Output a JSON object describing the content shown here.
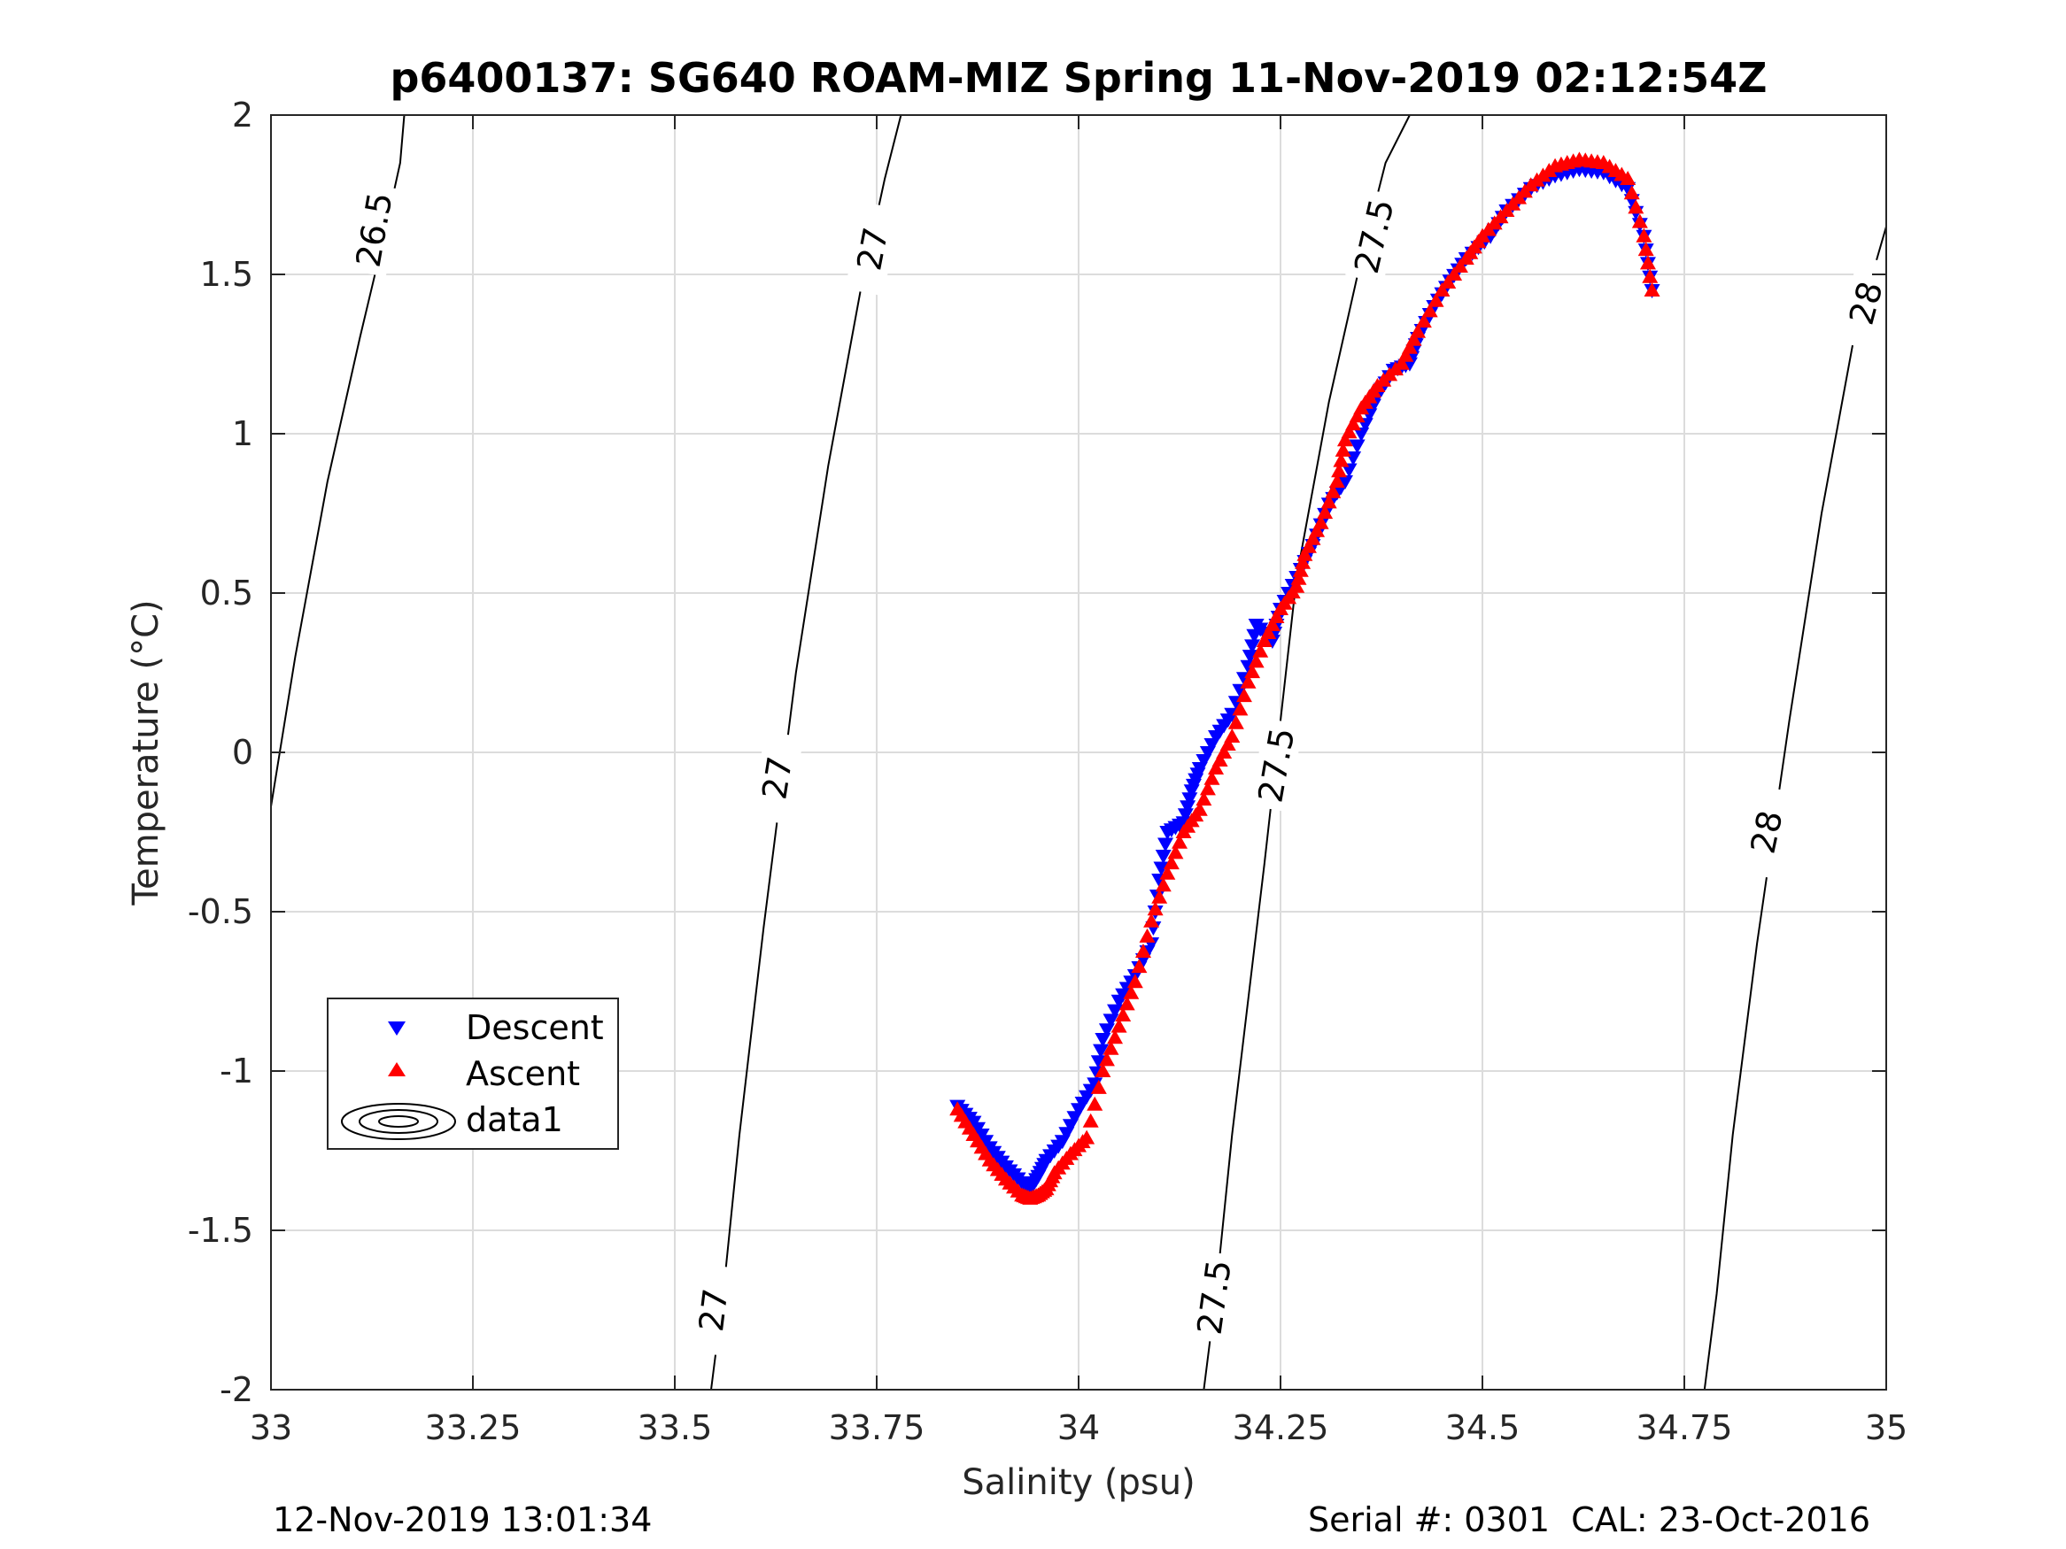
{
  "chart_data": {
    "type": "scatter",
    "title": "p6400137: SG640 ROAM-MIZ Spring 11-Nov-2019 02:12:54Z",
    "xlabel": "Salinity (psu)",
    "ylabel": "Temperature (°C)",
    "xlim": [
      33,
      35
    ],
    "ylim": [
      -2,
      2
    ],
    "grid": true,
    "xticks": [
      33,
      33.25,
      33.5,
      33.75,
      34,
      34.25,
      34.5,
      34.75,
      35
    ],
    "xtick_labels": [
      "33",
      "33.25",
      "33.5",
      "33.75",
      "34",
      "34.25",
      "34.5",
      "34.75",
      "35"
    ],
    "yticks": [
      2,
      1.5,
      1,
      0.5,
      0,
      -0.5,
      -1,
      -1.5,
      -2
    ],
    "ytick_labels": [
      "2",
      "1.5",
      "1",
      "0.5",
      "0",
      "-0.5",
      "-1",
      "-1.5",
      "-2"
    ],
    "legend": {
      "position": "lower-left",
      "entries": [
        "Descent",
        "Ascent",
        "data1"
      ]
    },
    "series": [
      {
        "name": "Descent",
        "marker": "triangle-down",
        "color": "#0000ff",
        "points": [
          [
            33.85,
            -1.11
          ],
          [
            33.87,
            -1.16
          ],
          [
            33.89,
            -1.24
          ],
          [
            33.91,
            -1.3
          ],
          [
            33.93,
            -1.35
          ],
          [
            33.94,
            -1.37
          ],
          [
            33.95,
            -1.33
          ],
          [
            33.96,
            -1.28
          ],
          [
            33.98,
            -1.22
          ],
          [
            34.0,
            -1.12
          ],
          [
            34.02,
            -1.04
          ],
          [
            34.03,
            -0.9
          ],
          [
            34.05,
            -0.78
          ],
          [
            34.07,
            -0.7
          ],
          [
            34.09,
            -0.6
          ],
          [
            34.1,
            -0.4
          ],
          [
            34.11,
            -0.25
          ],
          [
            34.13,
            -0.22
          ],
          [
            34.14,
            -0.12
          ],
          [
            34.15,
            -0.05
          ],
          [
            34.17,
            0.05
          ],
          [
            34.19,
            0.12
          ],
          [
            34.21,
            0.27
          ],
          [
            34.22,
            0.4
          ],
          [
            34.24,
            0.35
          ],
          [
            34.25,
            0.45
          ],
          [
            34.27,
            0.55
          ],
          [
            34.29,
            0.65
          ],
          [
            34.31,
            0.78
          ],
          [
            34.33,
            0.85
          ],
          [
            34.35,
            1.0
          ],
          [
            34.37,
            1.12
          ],
          [
            34.39,
            1.2
          ],
          [
            34.41,
            1.22
          ],
          [
            34.42,
            1.3
          ],
          [
            34.44,
            1.4
          ],
          [
            34.46,
            1.48
          ],
          [
            34.48,
            1.55
          ],
          [
            34.51,
            1.62
          ],
          [
            34.53,
            1.7
          ],
          [
            34.56,
            1.77
          ],
          [
            34.59,
            1.81
          ],
          [
            34.62,
            1.83
          ],
          [
            34.65,
            1.82
          ],
          [
            34.68,
            1.77
          ],
          [
            34.7,
            1.62
          ],
          [
            34.71,
            1.45
          ]
        ]
      },
      {
        "name": "Ascent",
        "marker": "triangle-up",
        "color": "#ff0000",
        "points": [
          [
            33.85,
            -1.12
          ],
          [
            33.87,
            -1.2
          ],
          [
            33.89,
            -1.28
          ],
          [
            33.91,
            -1.34
          ],
          [
            33.93,
            -1.39
          ],
          [
            33.94,
            -1.4
          ],
          [
            33.95,
            -1.39
          ],
          [
            33.96,
            -1.37
          ],
          [
            33.97,
            -1.32
          ],
          [
            33.99,
            -1.26
          ],
          [
            34.01,
            -1.21
          ],
          [
            34.03,
            -1.0
          ],
          [
            34.05,
            -0.86
          ],
          [
            34.07,
            -0.72
          ],
          [
            34.09,
            -0.53
          ],
          [
            34.11,
            -0.38
          ],
          [
            34.13,
            -0.25
          ],
          [
            34.15,
            -0.18
          ],
          [
            34.17,
            -0.05
          ],
          [
            34.19,
            0.05
          ],
          [
            34.21,
            0.22
          ],
          [
            34.23,
            0.35
          ],
          [
            34.25,
            0.45
          ],
          [
            34.27,
            0.52
          ],
          [
            34.28,
            0.62
          ],
          [
            34.3,
            0.72
          ],
          [
            34.32,
            0.85
          ],
          [
            34.33,
            0.98
          ],
          [
            34.35,
            1.08
          ],
          [
            34.37,
            1.15
          ],
          [
            34.4,
            1.22
          ],
          [
            34.42,
            1.32
          ],
          [
            34.45,
            1.45
          ],
          [
            34.48,
            1.55
          ],
          [
            34.5,
            1.62
          ],
          [
            34.53,
            1.7
          ],
          [
            34.56,
            1.78
          ],
          [
            34.59,
            1.84
          ],
          [
            34.62,
            1.86
          ],
          [
            34.65,
            1.85
          ],
          [
            34.68,
            1.8
          ],
          [
            34.7,
            1.62
          ],
          [
            34.71,
            1.45
          ]
        ]
      }
    ],
    "contours": [
      {
        "level": "26.5",
        "labels": [
          "26.5"
        ]
      },
      {
        "level": "27",
        "labels": [
          "27",
          "27",
          "27"
        ]
      },
      {
        "level": "27.5",
        "labels": [
          "27.5",
          "27.5",
          "27.5"
        ]
      },
      {
        "level": "28",
        "labels": [
          "28",
          "28"
        ]
      }
    ]
  },
  "footer": {
    "timestamp": "12-Nov-2019 13:01:34",
    "serial": "Serial #: 0301  CAL: 23-Oct-2016"
  }
}
